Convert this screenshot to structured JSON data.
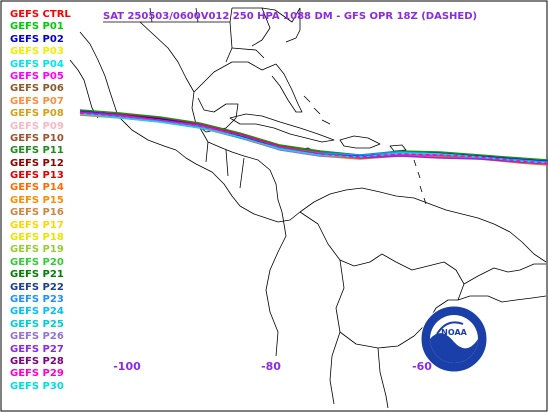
{
  "title": "SAT 250503/0600V012  250 HPA 1088 DM - GFS OPR 18Z (DASHED)",
  "logo_text": "NOAA",
  "longitude_labels": [
    "-100",
    "-80",
    "-60"
  ],
  "legend": [
    {
      "label": "GEFS CTRL",
      "color": "#ff0000"
    },
    {
      "label": "GEFS P01",
      "color": "#00cc00"
    },
    {
      "label": "GEFS P02",
      "color": "#0000cc"
    },
    {
      "label": "GEFS P03",
      "color": "#eeee00"
    },
    {
      "label": "GEFS P04",
      "color": "#00e5ee"
    },
    {
      "label": "GEFS P05",
      "color": "#ff00ff"
    },
    {
      "label": "GEFS P06",
      "color": "#8b5a2b"
    },
    {
      "label": "GEFS P07",
      "color": "#ff8c3c"
    },
    {
      "label": "GEFS P08",
      "color": "#d4a017"
    },
    {
      "label": "GEFS P09",
      "color": "#ffb6c1"
    },
    {
      "label": "GEFS P10",
      "color": "#a0522d"
    },
    {
      "label": "GEFS P11",
      "color": "#1e8c1e"
    },
    {
      "label": "GEFS P12",
      "color": "#8b0000"
    },
    {
      "label": "GEFS P13",
      "color": "#e00000"
    },
    {
      "label": "GEFS P14",
      "color": "#ff6a00"
    },
    {
      "label": "GEFS P15",
      "color": "#ff8c00"
    },
    {
      "label": "GEFS P16",
      "color": "#cd853f"
    },
    {
      "label": "GEFS P17",
      "color": "#ffd700"
    },
    {
      "label": "GEFS P18",
      "color": "#e6e600"
    },
    {
      "label": "GEFS P19",
      "color": "#9acd32"
    },
    {
      "label": "GEFS P20",
      "color": "#32cd32"
    },
    {
      "label": "GEFS P21",
      "color": "#008000"
    },
    {
      "label": "GEFS P22",
      "color": "#1c3f8c"
    },
    {
      "label": "GEFS P23",
      "color": "#1e90ff"
    },
    {
      "label": "GEFS P24",
      "color": "#00bfff"
    },
    {
      "label": "GEFS P25",
      "color": "#00ced1"
    },
    {
      "label": "GEFS P26",
      "color": "#9370db"
    },
    {
      "label": "GEFS P27",
      "color": "#8a2be2"
    },
    {
      "label": "GEFS P28",
      "color": "#800080"
    },
    {
      "label": "GEFS P29",
      "color": "#ff00cc"
    },
    {
      "label": "GEFS P30",
      "color": "#00e0e0"
    }
  ],
  "colors": {
    "coastline": "#000000",
    "title": "#8a2be2",
    "background": "#ffffff"
  }
}
